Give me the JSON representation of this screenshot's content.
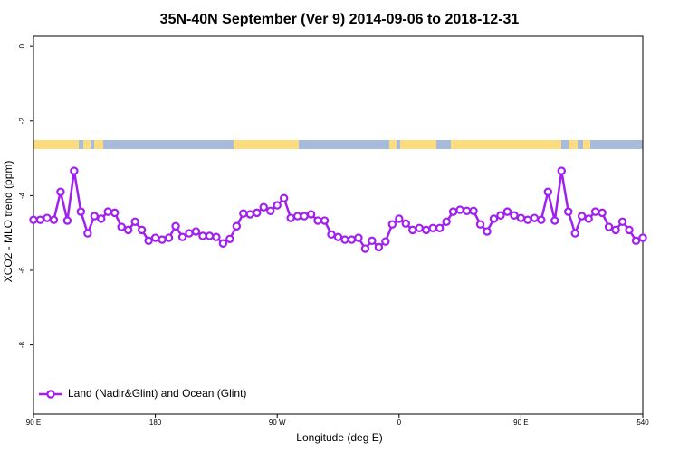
{
  "chart_data": {
    "type": "line",
    "title": "35N-40N September (Ver 9)   2014-09-06 to 2018-12-31",
    "x_label": "Longitude (deg E)",
    "y_label": "XCO2 - MLO trend (ppm)",
    "x": [
      90,
      95,
      100,
      105,
      110,
      115,
      120,
      125,
      130,
      135,
      140,
      145,
      150,
      155,
      160,
      165,
      170,
      175,
      180,
      185,
      190,
      195,
      200,
      205,
      210,
      215,
      220,
      225,
      230,
      235,
      240,
      245,
      250,
      255,
      260,
      265,
      270,
      275,
      280,
      285,
      290,
      295,
      300,
      305,
      310,
      315,
      320,
      325,
      330,
      335,
      340,
      345,
      350,
      355,
      360,
      365,
      370,
      375,
      380,
      385,
      390,
      395,
      400,
      405,
      410,
      415,
      420,
      425,
      430,
      435,
      440,
      445,
      450,
      455,
      460,
      465,
      470,
      475,
      480,
      485,
      490,
      495,
      500,
      505,
      510,
      515,
      520,
      525,
      530,
      535,
      540
    ],
    "series": [
      {
        "name": "Land (Nadir&Glint) and Ocean (Glint)",
        "color": "#a020f0",
        "values": [
          -4.65,
          -4.65,
          -4.6,
          -4.65,
          -3.9,
          -4.67,
          -3.34,
          -4.43,
          -5.01,
          -4.55,
          -4.62,
          -4.43,
          -4.46,
          -4.84,
          -4.92,
          -4.7,
          -4.92,
          -5.21,
          -5.13,
          -5.18,
          -5.13,
          -4.82,
          -5.11,
          -5.01,
          -4.96,
          -5.08,
          -5.08,
          -5.11,
          -5.28,
          -5.16,
          -4.82,
          -4.48,
          -4.5,
          -4.46,
          -4.31,
          -4.41,
          -4.26,
          -4.07,
          -4.6,
          -4.55,
          -4.55,
          -4.5,
          -4.67,
          -4.67,
          -5.04,
          -5.11,
          -5.18,
          -5.18,
          -5.13,
          -5.42,
          -5.21,
          -5.38,
          -5.23,
          -4.77,
          -4.62,
          -4.75,
          -4.92,
          -4.87,
          -4.92,
          -4.87,
          -4.87,
          -4.7,
          -4.43,
          -4.38,
          -4.41,
          -4.41,
          -4.77,
          -4.96,
          -4.62,
          -4.53,
          -4.43,
          -4.53,
          -4.6,
          -4.65,
          -4.6,
          -4.65,
          -3.9,
          -4.67,
          -3.34,
          -4.43,
          -5.01,
          -4.55,
          -4.62,
          -4.43,
          -4.46,
          -4.84,
          -4.92,
          -4.7,
          -4.92,
          -5.21,
          -5.13
        ]
      }
    ],
    "xlim": [
      90,
      540
    ],
    "xticks": [
      {
        "value": 90,
        "label": "90 E"
      },
      180,
      {
        "value": 270,
        "label": "90 W"
      },
      {
        "value": 360,
        "label": "0"
      },
      {
        "value": 450,
        "label": "90 E"
      },
      540
    ],
    "ylim": [
      -9.85,
      0.27
    ],
    "yticks": [
      0,
      -2,
      -4,
      -6,
      -8
    ],
    "legend": "bottom-left"
  }
}
